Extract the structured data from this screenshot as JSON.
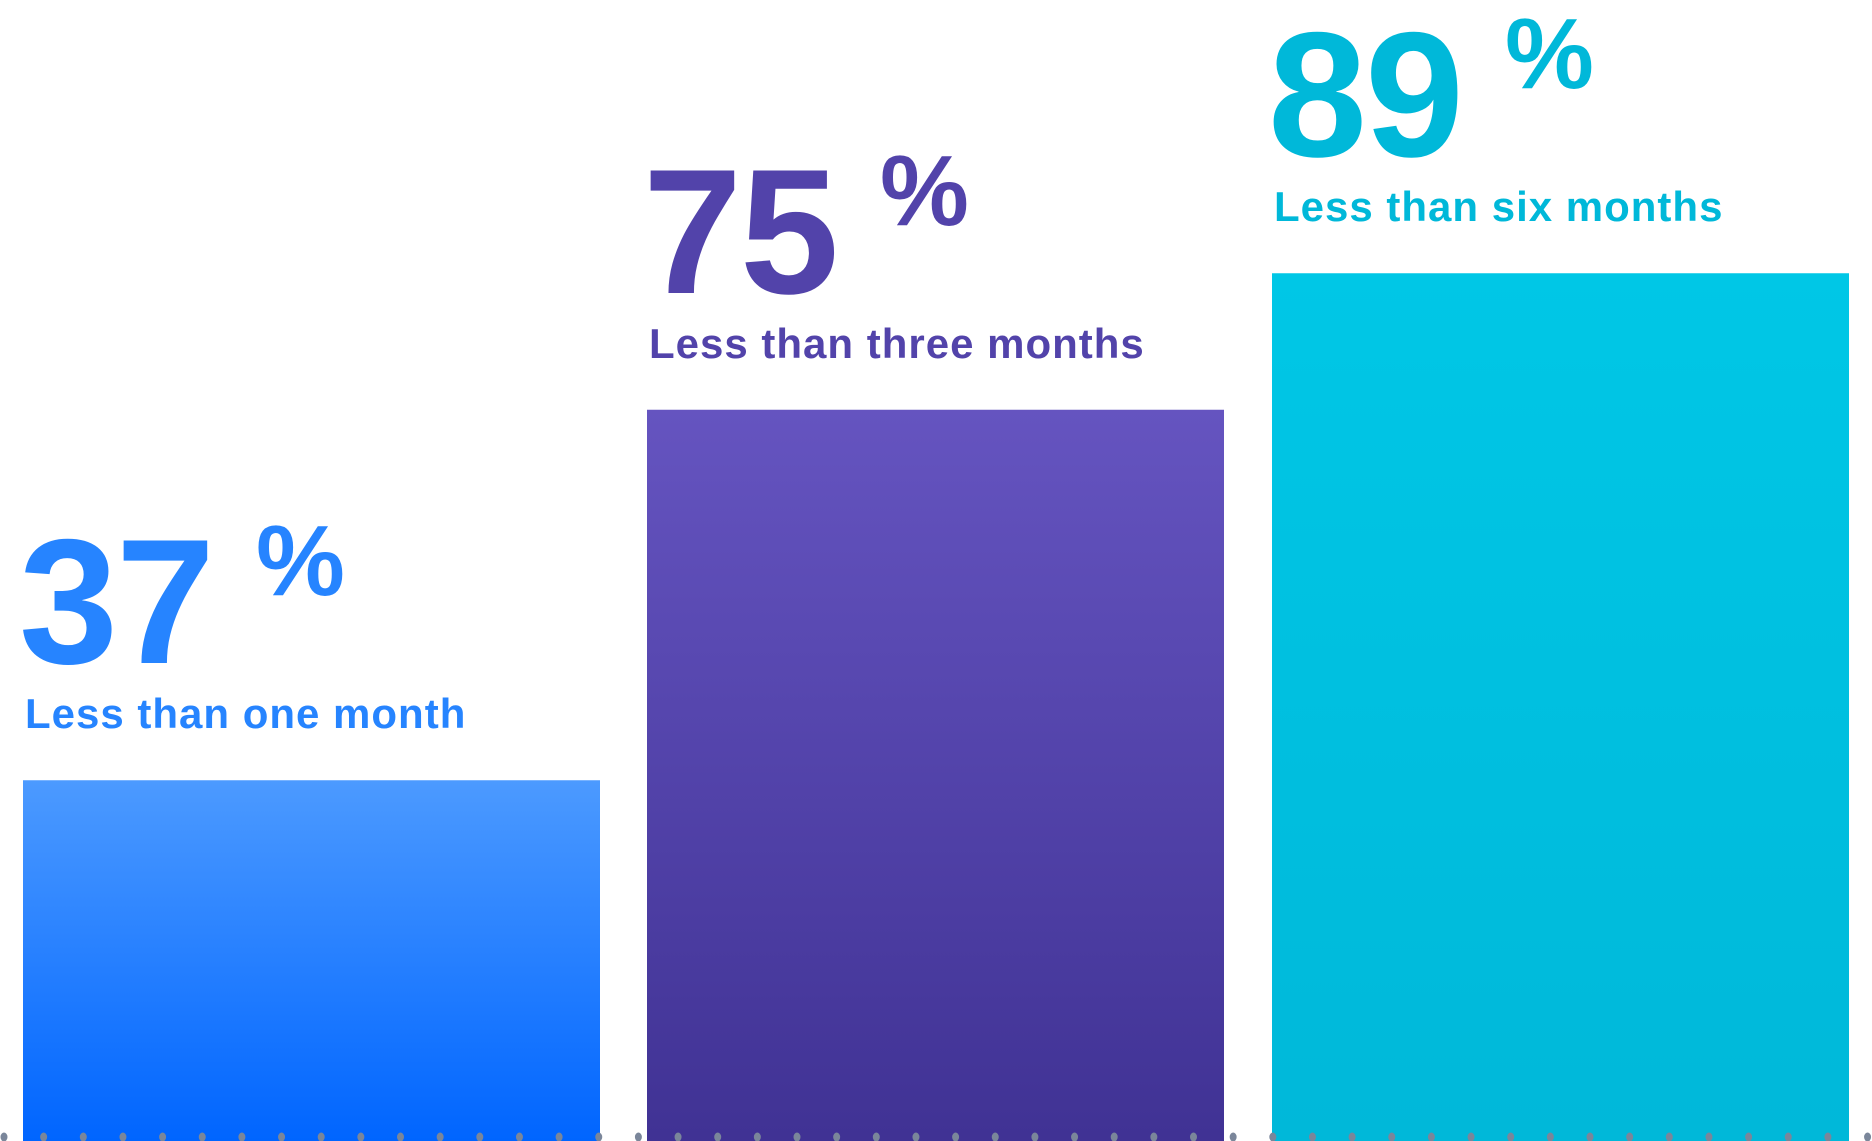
{
  "chart_data": {
    "type": "bar",
    "categories": [
      "Less than one month",
      "Less than three months",
      "Less than six months"
    ],
    "values": [
      37,
      75,
      89
    ],
    "value_labels": [
      "37",
      "75",
      "89"
    ],
    "unit": "%",
    "ylim": [
      0,
      100
    ],
    "grid": false,
    "axes_visible": false,
    "baseline": "dotted",
    "colors": {
      "text": [
        "#2684ff",
        "#5243aa",
        "#00b8d9"
      ],
      "bar_top": [
        "#4c9aff",
        "#6554c0",
        "#00c7e6"
      ],
      "bar_bottom": [
        "#0065ff",
        "#403294",
        "#00b8d9"
      ],
      "dots": "#7a869a"
    }
  }
}
